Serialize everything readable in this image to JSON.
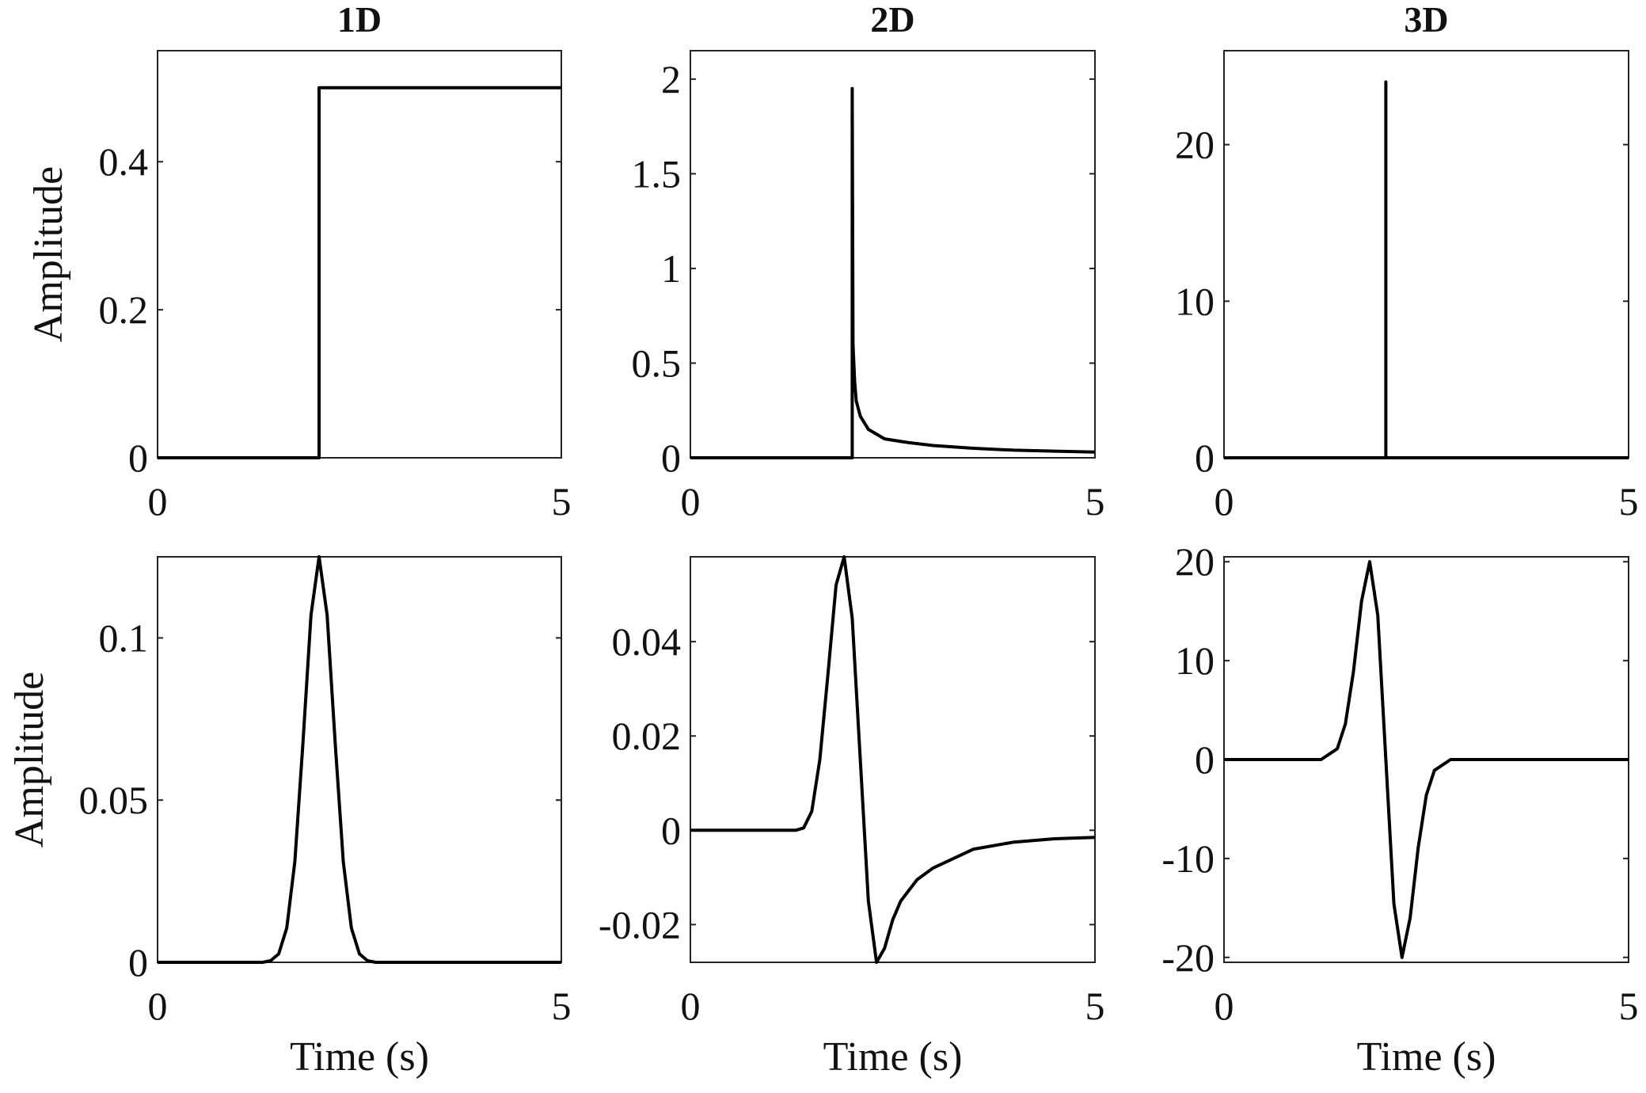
{
  "chart_data": [
    {
      "type": "line",
      "title": "1D",
      "xlabel": "",
      "ylabel": "Amplitude",
      "xlim": [
        0,
        5
      ],
      "ylim": [
        0,
        0.55
      ],
      "xticks": [
        0,
        5
      ],
      "xtick_labels": [
        "0",
        "5"
      ],
      "yticks": [
        0,
        0.2,
        0.4
      ],
      "ytick_labels": [
        "0",
        "0.2",
        "0.4"
      ],
      "x": [
        0,
        2,
        2,
        5
      ],
      "y": [
        0,
        0,
        0.5,
        0.5
      ]
    },
    {
      "type": "line",
      "title": "2D",
      "xlabel": "",
      "ylabel": "",
      "xlim": [
        0,
        5
      ],
      "ylim": [
        0,
        2.15
      ],
      "xticks": [
        0,
        5
      ],
      "xtick_labels": [
        "0",
        "5"
      ],
      "yticks": [
        0,
        0.5,
        1,
        1.5,
        2
      ],
      "ytick_labels": [
        "0",
        "0.5",
        "1",
        "1.5",
        "2"
      ],
      "x": [
        0,
        2,
        2,
        2.01,
        2.03,
        2.05,
        2.1,
        2.2,
        2.4,
        2.7,
        3,
        3.5,
        4,
        4.5,
        5
      ],
      "y": [
        0,
        0,
        1.95,
        0.6,
        0.4,
        0.3,
        0.22,
        0.15,
        0.1,
        0.08,
        0.065,
        0.05,
        0.04,
        0.035,
        0.03
      ]
    },
    {
      "type": "line",
      "title": "3D",
      "xlabel": "",
      "ylabel": "",
      "xlim": [
        0,
        5
      ],
      "ylim": [
        0,
        26
      ],
      "xticks": [
        0,
        5
      ],
      "xtick_labels": [
        "0",
        "5"
      ],
      "yticks": [
        0,
        10,
        20
      ],
      "ytick_labels": [
        "0",
        "10",
        "20"
      ],
      "x": [
        0,
        2,
        2,
        2,
        5
      ],
      "y": [
        0,
        0,
        24,
        0,
        0
      ]
    },
    {
      "type": "line",
      "title": "",
      "xlabel": "Time (s)",
      "ylabel": "Amplitude",
      "xlim": [
        0,
        5
      ],
      "ylim": [
        0,
        0.125
      ],
      "xticks": [
        0,
        5
      ],
      "xtick_labels": [
        "0",
        "5"
      ],
      "yticks": [
        0,
        0.05,
        0.1
      ],
      "ytick_labels": [
        "0",
        "0.05",
        "0.1"
      ],
      "x": [
        0,
        1.3,
        1.4,
        1.5,
        1.6,
        1.7,
        1.8,
        1.9,
        2.0,
        2.1,
        2.2,
        2.3,
        2.4,
        2.5,
        2.6,
        2.7,
        5
      ],
      "y": [
        0,
        0,
        0.0005,
        0.0026,
        0.0106,
        0.031,
        0.0675,
        0.107,
        0.125,
        0.107,
        0.0675,
        0.031,
        0.0106,
        0.0026,
        0.0005,
        0,
        0
      ]
    },
    {
      "type": "line",
      "title": "",
      "xlabel": "Time (s)",
      "ylabel": "",
      "xlim": [
        0,
        5
      ],
      "ylim": [
        -0.028,
        0.058
      ],
      "xticks": [
        0,
        5
      ],
      "xtick_labels": [
        "0",
        "5"
      ],
      "yticks": [
        -0.02,
        0,
        0.02,
        0.04
      ],
      "ytick_labels": [
        "-0.02",
        "0",
        "0.02",
        "0.04"
      ],
      "x": [
        0,
        1.3,
        1.4,
        1.5,
        1.6,
        1.7,
        1.8,
        1.9,
        2.0,
        2.1,
        2.2,
        2.3,
        2.4,
        2.5,
        2.6,
        2.8,
        3.0,
        3.5,
        4.0,
        4.5,
        5.0
      ],
      "y": [
        0,
        0,
        0.0005,
        0.004,
        0.015,
        0.033,
        0.052,
        0.058,
        0.045,
        0.015,
        -0.015,
        -0.028,
        -0.025,
        -0.019,
        -0.015,
        -0.0105,
        -0.008,
        -0.004,
        -0.0025,
        -0.0018,
        -0.0015
      ]
    },
    {
      "type": "line",
      "title": "",
      "xlabel": "Time (s)",
      "ylabel": "",
      "xlim": [
        0,
        5
      ],
      "ylim": [
        -20.5,
        20.5
      ],
      "xticks": [
        0,
        5
      ],
      "xtick_labels": [
        "0",
        "5"
      ],
      "yticks": [
        -20,
        -10,
        0,
        10,
        20
      ],
      "ytick_labels": [
        "-20",
        "-10",
        "0",
        "10",
        "20"
      ],
      "x": [
        0,
        1.2,
        1.4,
        1.5,
        1.6,
        1.7,
        1.8,
        1.9,
        2.0,
        2.1,
        2.2,
        2.3,
        2.4,
        2.5,
        2.6,
        2.8,
        5
      ],
      "y": [
        0,
        0,
        1.1,
        3.6,
        8.9,
        16.0,
        20,
        14.6,
        0,
        -14.6,
        -20,
        -16.0,
        -8.9,
        -3.6,
        -1.1,
        0,
        0
      ]
    }
  ]
}
